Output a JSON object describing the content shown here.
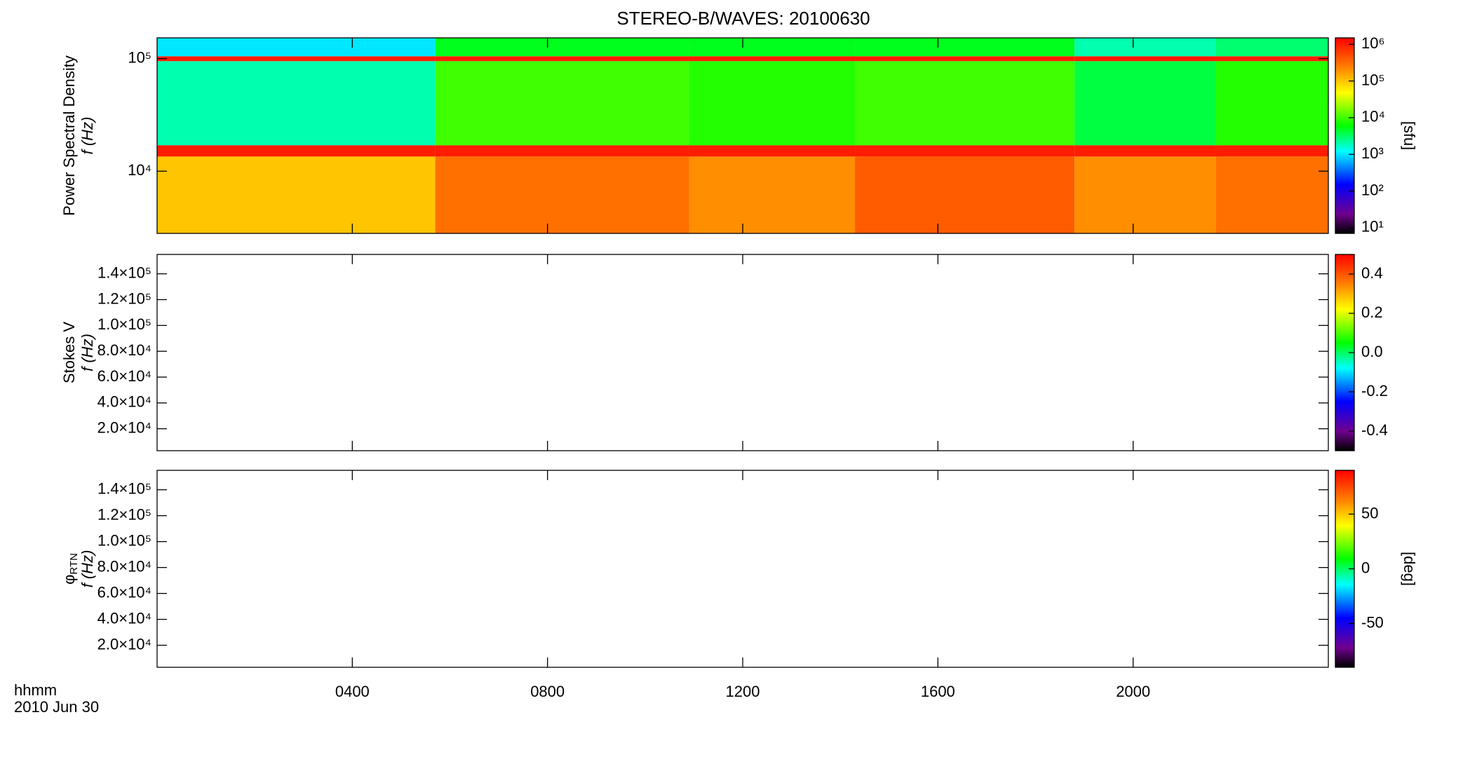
{
  "chart_data": [
    {
      "type": "heatmap",
      "title": "STEREO-B/WAVES: 20100630",
      "ylabel": "Power Spectral Density",
      "ylabel2": "f (Hz)",
      "ylog": true,
      "ylim": [
        2800,
        153000
      ],
      "yticks": [
        {
          "value": 10000,
          "label": "10⁴"
        },
        {
          "value": 100000,
          "label": "10⁵"
        }
      ],
      "xlim": [
        0,
        24
      ],
      "xticks": [
        4,
        8,
        12,
        16,
        20
      ],
      "x_edges": [
        0,
        5.7,
        10.9,
        14.3,
        18.8,
        21.7,
        24
      ],
      "y_edges": [
        2800,
        13500,
        17000,
        95000,
        105000,
        153000
      ],
      "values": [
        [
          100000,
          1000000,
          2000,
          1000000,
          1000
        ],
        [
          300000,
          1000000,
          10000,
          1000000,
          5000
        ],
        [
          200000,
          1000000,
          8000,
          1000000,
          5000
        ],
        [
          400000,
          1000000,
          10000,
          1000000,
          5000
        ],
        [
          200000,
          1000000,
          4000,
          1000000,
          2000
        ],
        [
          300000,
          1000000,
          8000,
          1000000,
          3000
        ]
      ],
      "colorlog": true,
      "colorlim": [
        7,
        1500000
      ],
      "colorticks": [
        {
          "value": 10,
          "label": "10¹"
        },
        {
          "value": 100,
          "label": "10²"
        },
        {
          "value": 1000,
          "label": "10³"
        },
        {
          "value": 10000,
          "label": "10⁴"
        },
        {
          "value": 100000,
          "label": "10⁵"
        },
        {
          "value": 1000000,
          "label": "10⁶"
        }
      ],
      "colorlabel": "[sfu]"
    },
    {
      "type": "heatmap",
      "ylabel": "Stokes V",
      "ylabel2": "f (Hz)",
      "ylog": false,
      "ylim": [
        3000,
        155000
      ],
      "yticks": [
        {
          "value": 20000,
          "label": "2.0×10⁴"
        },
        {
          "value": 40000,
          "label": "4.0×10⁴"
        },
        {
          "value": 60000,
          "label": "6.0×10⁴"
        },
        {
          "value": 80000,
          "label": "8.0×10⁴"
        },
        {
          "value": 100000,
          "label": "1.0×10⁵"
        },
        {
          "value": 120000,
          "label": "1.2×10⁵"
        },
        {
          "value": 140000,
          "label": "1.4×10⁵"
        }
      ],
      "xlim": [
        0,
        24
      ],
      "xticks": [
        4,
        8,
        12,
        16,
        20
      ],
      "colorlog": false,
      "colorlim": [
        -0.5,
        0.5
      ],
      "colorticks": [
        {
          "value": -0.4,
          "label": "-0.4"
        },
        {
          "value": -0.2,
          "label": "-0.2"
        },
        {
          "value": 0,
          "label": "0.0"
        },
        {
          "value": 0.2,
          "label": "0.2"
        },
        {
          "value": 0.4,
          "label": "0.4"
        }
      ]
    },
    {
      "type": "heatmap",
      "ylabel": "φ",
      "ylabel_subscript": "RTN",
      "ylabel2": "f (Hz)",
      "ylog": false,
      "ylim": [
        3000,
        155000
      ],
      "yticks": [
        {
          "value": 20000,
          "label": "2.0×10⁴"
        },
        {
          "value": 40000,
          "label": "4.0×10⁴"
        },
        {
          "value": 60000,
          "label": "6.0×10⁴"
        },
        {
          "value": 80000,
          "label": "8.0×10⁴"
        },
        {
          "value": 100000,
          "label": "1.0×10⁵"
        },
        {
          "value": 120000,
          "label": "1.2×10⁵"
        },
        {
          "value": 140000,
          "label": "1.4×10⁵"
        }
      ],
      "xlim": [
        0,
        24
      ],
      "xticks": [
        {
          "value": 4,
          "label": "0400"
        },
        {
          "value": 8,
          "label": "0800"
        },
        {
          "value": 12,
          "label": "1200"
        },
        {
          "value": 16,
          "label": "1600"
        },
        {
          "value": 20,
          "label": "2000"
        }
      ],
      "xlabel": "hhmm",
      "date": "2010 Jun 30",
      "colorlog": false,
      "colorlim": [
        -90,
        90
      ],
      "colorticks": [
        -50,
        0,
        50
      ],
      "colorlabel": "[deg]"
    }
  ]
}
